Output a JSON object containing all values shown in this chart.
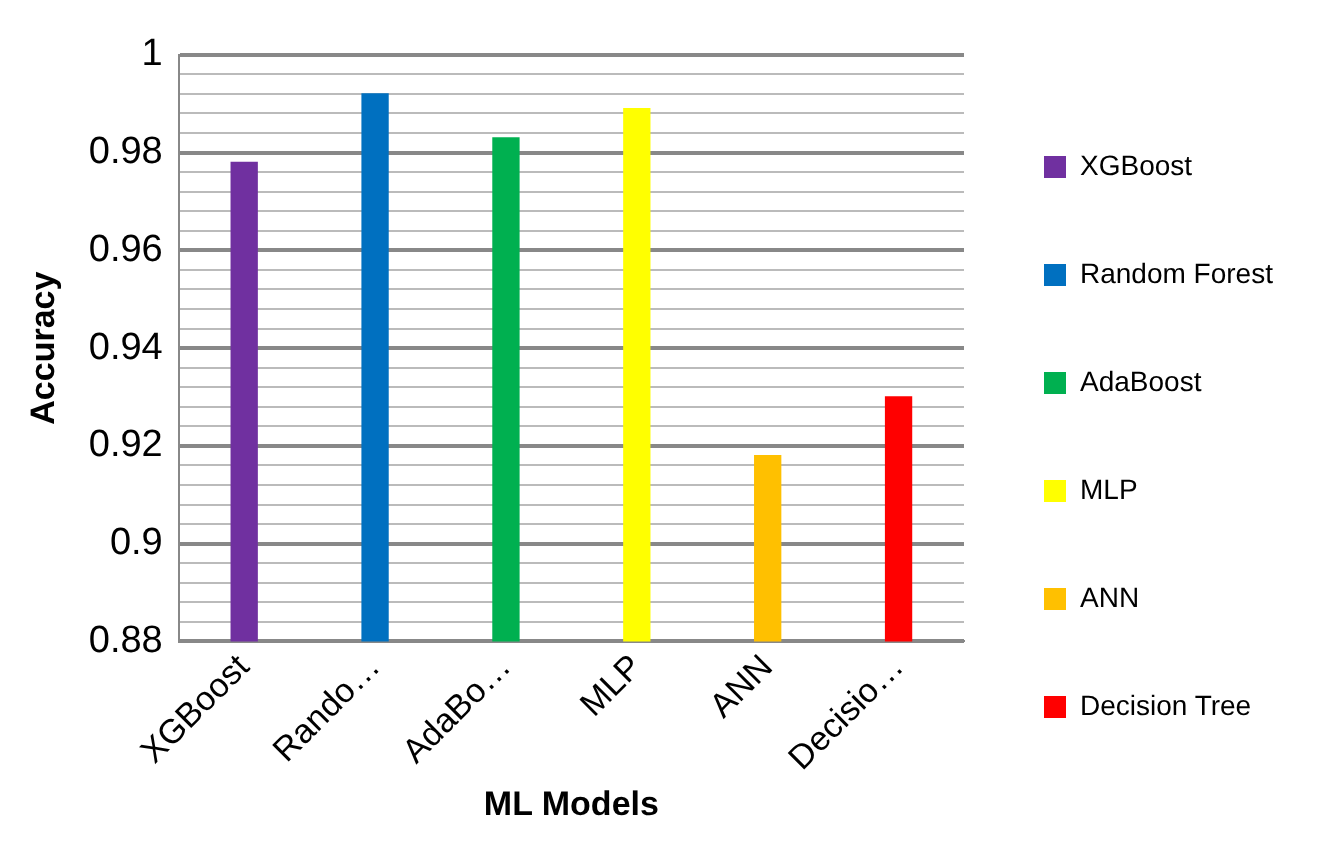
{
  "chart_data": {
    "type": "bar",
    "xlabel": "ML Models",
    "ylabel": "Accuracy",
    "categories": [
      "XGBoost",
      "Rando…",
      "AdaBo…",
      "MLP",
      "ANN",
      "Decisio…"
    ],
    "series": [
      {
        "name": "XGBoost",
        "color": "#7030a0",
        "values": [
          0.978,
          null,
          null,
          null,
          null,
          null
        ]
      },
      {
        "name": "Random Forest",
        "color": "#0070c0",
        "values": [
          null,
          0.992,
          null,
          null,
          null,
          null
        ]
      },
      {
        "name": "AdaBoost",
        "color": "#00b050",
        "values": [
          null,
          null,
          0.983,
          null,
          null,
          null
        ]
      },
      {
        "name": "MLP",
        "color": "#ffff00",
        "values": [
          null,
          null,
          null,
          0.989,
          null,
          null
        ]
      },
      {
        "name": "ANN",
        "color": "#ffc000",
        "values": [
          null,
          null,
          null,
          null,
          0.918,
          null
        ]
      },
      {
        "name": "Decision Tree",
        "color": "#ff0000",
        "values": [
          null,
          null,
          null,
          null,
          null,
          0.93
        ]
      }
    ],
    "ylim": [
      0.88,
      1
    ],
    "yticks": [
      0.88,
      {
        "value": 0.884,
        "label": null
      },
      {
        "value": 0.888,
        "label": null
      },
      {
        "value": 0.892,
        "label": null
      },
      {
        "value": 0.896,
        "label": null
      },
      0.9,
      {
        "value": 0.904,
        "label": null
      },
      {
        "value": 0.908,
        "label": null
      },
      {
        "value": 0.912,
        "label": null
      },
      {
        "value": 0.916,
        "label": null
      },
      0.92,
      {
        "value": 0.924,
        "label": null
      },
      {
        "value": 0.928,
        "label": null
      },
      {
        "value": 0.932,
        "label": null
      },
      {
        "value": 0.936,
        "label": null
      },
      0.94,
      {
        "value": 0.944,
        "label": null
      },
      {
        "value": 0.948,
        "label": null
      },
      {
        "value": 0.952,
        "label": null
      },
      {
        "value": 0.956,
        "label": null
      },
      0.96,
      {
        "value": 0.964,
        "label": null
      },
      {
        "value": 0.968,
        "label": null
      },
      {
        "value": 0.972,
        "label": null
      },
      {
        "value": 0.976,
        "label": null
      },
      0.98,
      {
        "value": 0.984,
        "label": null
      },
      {
        "value": 0.988,
        "label": null
      },
      {
        "value": 0.992,
        "label": null
      },
      {
        "value": 0.996,
        "label": null
      },
      1
    ],
    "grid": "y",
    "legend": "right"
  }
}
